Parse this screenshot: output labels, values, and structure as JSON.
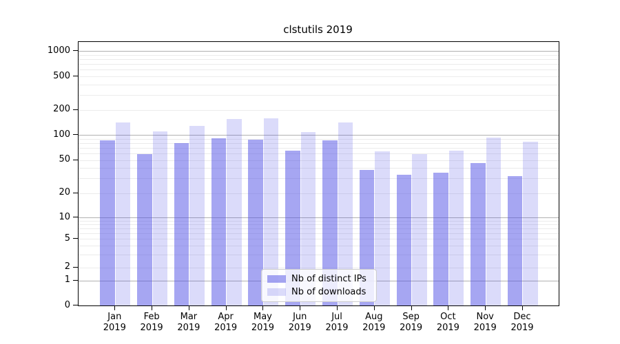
{
  "title": "clstutils 2019",
  "colors": {
    "bar_distinct_ips": "rgba(77,77,230,0.5)",
    "bar_downloads": "rgba(77,77,230,0.2)",
    "grid_decade": "#b0b0b0",
    "grid_minor": "#ebebeb",
    "axis": "#000000",
    "legend_border": "#cccccc"
  },
  "chart_data": {
    "type": "bar",
    "title": "clstutils 2019",
    "categories": [
      "Jan",
      "Feb",
      "Mar",
      "Apr",
      "May",
      "Jun",
      "Jul",
      "Aug",
      "Sep",
      "Oct",
      "Nov",
      "Dec"
    ],
    "year": "2019",
    "series": [
      {
        "name": "Nb of distinct IPs",
        "color": "rgba(77,77,230,0.5)",
        "values": [
          87,
          59,
          80,
          91,
          88,
          65,
          86,
          38,
          33,
          35,
          46,
          32
        ]
      },
      {
        "name": "Nb of downloads",
        "color": "rgba(77,77,230,0.2)",
        "values": [
          142,
          110,
          130,
          156,
          160,
          109,
          143,
          64,
          59,
          65,
          93,
          83
        ]
      }
    ],
    "xlabel": "",
    "ylabel": "",
    "yscale": "symlog",
    "ylim": [
      0,
      1350
    ],
    "yticks": [
      0,
      1,
      2,
      5,
      10,
      20,
      50,
      100,
      200,
      500,
      1000
    ],
    "grid": true,
    "legend_position": "lower center"
  }
}
